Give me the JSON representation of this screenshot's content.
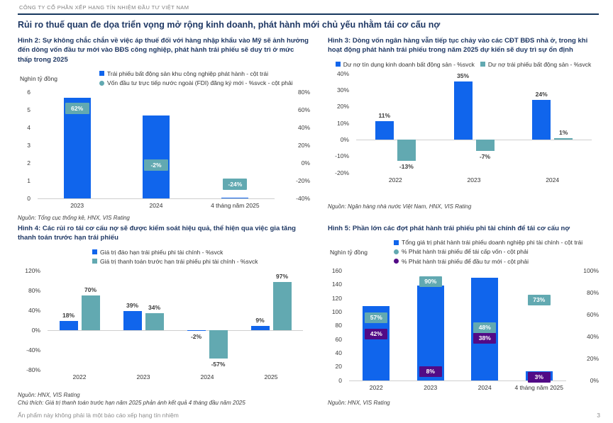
{
  "header": {
    "company": "CÔNG TY CỔ PHẦN XẾP HẠNG TÍN NHIỆM ĐẦU TƯ VIỆT NAM"
  },
  "page_title": "Rủi ro thuế quan đe dọa triển vọng mở rộng kinh doanh, phát hành mới chủ yếu nhằm tái cơ cấu nợ",
  "footer": {
    "disclaimer": "Ấn phẩm này không phải là một báo cáo xếp hạng tín nhiệm",
    "page_number": "3"
  },
  "colors": {
    "navy": "#1f3864",
    "blue": "#1065ec",
    "teal": "#62a9b1",
    "purple": "#520a86",
    "gray_text": "#7f7f7f"
  },
  "chart_data": [
    {
      "type": "bar",
      "variant": "bars_with_point_labels",
      "title": "Hình 2: Sự không chắc chắn về việc áp thuế đối với hàng nhập khẩu vào Mỹ sẽ ảnh hưởng đến dòng vốn đầu tư mới vào BĐS công nghiệp, phát hành trái phiếu sẽ duy trì ở mức thấp trong 2025",
      "unit": "Nghìn tỷ đồng",
      "legend": [
        {
          "label": "Trái phiếu bất động sản khu công nghiệp phát hành - cột trái",
          "marker": "square",
          "color": "blue"
        },
        {
          "label": "Vốn đầu tư trực tiếp nước ngoài (FDI) đăng ký mới  - %svck - cột phải",
          "marker": "circle",
          "color": "teal"
        }
      ],
      "categories": [
        "2023",
        "2024",
        "4 tháng năm 2025"
      ],
      "bars": {
        "name": "Trái phiếu bất động sản khu công nghiệp phát hành",
        "color": "blue",
        "values": [
          5.7,
          4.7,
          0.05
        ]
      },
      "left_axis": {
        "min": 0,
        "max": 6,
        "ticks": [
          {
            "v": 6,
            "t": "6"
          },
          {
            "v": 5,
            "t": "5"
          },
          {
            "v": 4,
            "t": "4"
          },
          {
            "v": 3,
            "t": "3"
          },
          {
            "v": 2,
            "t": "2"
          },
          {
            "v": 1,
            "t": "1"
          },
          {
            "v": 0,
            "t": "0"
          }
        ]
      },
      "right_axis": {
        "min": -40,
        "max": 80,
        "ticks": [
          {
            "v": 80,
            "t": "80%"
          },
          {
            "v": 60,
            "t": "60%"
          },
          {
            "v": 40,
            "t": "40%"
          },
          {
            "v": 20,
            "t": "20%"
          },
          {
            "v": 0,
            "t": "0%"
          },
          {
            "v": -20,
            "t": "-20%"
          },
          {
            "v": -40,
            "t": "-40%"
          }
        ]
      },
      "points": [
        {
          "name": "Vốn đầu tư trực tiếp nước ngoài (FDI) đăng ký mới - %svck",
          "color": "teal",
          "values": [
            62,
            -2,
            -24
          ],
          "labels": [
            "62%",
            "-2%",
            "-24%"
          ]
        }
      ],
      "source": "Nguồn: Tổng cục thống kê, HNX, VIS Rating"
    },
    {
      "type": "bar",
      "variant": "grouped",
      "title": "Hình 3:  Dòng vốn ngân hàng vẫn tiếp tục chảy vào các CĐT BĐS nhà ở, trong khi hoạt động phát hành trái phiếu trong năm 2025 dự kiến sẽ duy trì sự ổn định",
      "legend": [
        {
          "label": "Dư nợ tín dụng kinh doanh bất động sản - %svck",
          "marker": "square",
          "color": "blue"
        },
        {
          "label": "Dư nợ trái phiếu bất động sản - %svck",
          "marker": "square",
          "color": "teal"
        }
      ],
      "categories": [
        "2022",
        "2023",
        "2024"
      ],
      "series": [
        {
          "name": "Dư nợ tín dụng kinh doanh bất động sản - %svck",
          "color": "blue",
          "values": [
            11,
            35,
            24
          ],
          "labels": [
            "11%",
            "35%",
            "24%"
          ]
        },
        {
          "name": "Dư nợ trái phiếu bất động sản - %svck",
          "color": "teal",
          "values": [
            -13,
            -7,
            1
          ],
          "labels": [
            "-13%",
            "-7%",
            "1%"
          ]
        }
      ],
      "axis": {
        "min": -20,
        "max": 40,
        "ticks": [
          {
            "v": 40,
            "t": "40%"
          },
          {
            "v": 30,
            "t": "30%"
          },
          {
            "v": 20,
            "t": "20%"
          },
          {
            "v": 10,
            "t": "10%"
          },
          {
            "v": 0,
            "t": "0%"
          },
          {
            "v": -10,
            "t": "-10%"
          },
          {
            "v": -20,
            "t": "-20%"
          }
        ]
      },
      "source": "Nguồn: Ngân hàng nhà nước Việt Nam, HNX, VIS Rating"
    },
    {
      "type": "bar",
      "variant": "grouped",
      "title": "Hình 4: Các rủi ro tái cơ cấu nợ sẽ được kiểm soát hiệu quả, thể hiện qua việc gia tăng thanh toán trước hạn trái phiếu",
      "legend": [
        {
          "label": "Giá trị đáo hạn trái phiếu phi tài chính - %svck",
          "marker": "square",
          "color": "blue"
        },
        {
          "label": "Giá trị thanh toán trước hạn trái phiếu phi tài chính - %svck",
          "marker": "square",
          "color": "teal"
        }
      ],
      "categories": [
        "2022",
        "2023",
        "2024",
        "2025"
      ],
      "series": [
        {
          "name": "Giá trị đáo hạn trái phiếu phi tài chính - %svck",
          "color": "blue",
          "values": [
            18,
            39,
            -2,
            9
          ],
          "labels": [
            "18%",
            "39%",
            "-2%",
            "9%"
          ]
        },
        {
          "name": "Giá trị thanh toán trước hạn trái phiếu phi tài chính - %svck",
          "color": "teal",
          "values": [
            70,
            34,
            -57,
            97
          ],
          "labels": [
            "70%",
            "34%",
            "-57%",
            "97%"
          ]
        }
      ],
      "axis": {
        "min": -80,
        "max": 120,
        "ticks": [
          {
            "v": 120,
            "t": "120%"
          },
          {
            "v": 80,
            "t": "80%"
          },
          {
            "v": 40,
            "t": "40%"
          },
          {
            "v": 0,
            "t": "0%"
          },
          {
            "v": -40,
            "t": "-40%"
          },
          {
            "v": -80,
            "t": "-80%"
          }
        ]
      },
      "source": "Nguồn: HNX, VIS Rating",
      "note": "Chú thích: Giá trị thanh toán trước hạn năm 2025 phản ánh kết quả 4 tháng đầu năm 2025"
    },
    {
      "type": "bar",
      "variant": "bars_with_point_labels",
      "title": "Hình 5: Phần lớn các đợt phát hành trái phiếu phi tài chính để tái cơ cấu nợ",
      "unit": "Nghìn tỷ đồng",
      "legend": [
        {
          "label": "Tổng giá trị phát hành trái phiếu doanh nghiệp phi tài chính - cột trái",
          "marker": "square",
          "color": "blue"
        },
        {
          "label": "% Phát hành trái phiếu để tái cấp vốn - cột phải",
          "marker": "circle",
          "color": "teal"
        },
        {
          "label": "% Phát hành trái phiếu để đầu tư mới - cột phải",
          "marker": "circle",
          "color": "purple"
        }
      ],
      "categories": [
        "2022",
        "2023",
        "2024",
        "4 tháng năm 2025"
      ],
      "bars": {
        "name": "Tổng giá trị phát hành trái phiếu doanh nghiệp phi tài chính",
        "color": "blue",
        "values": [
          108,
          138,
          150,
          13
        ]
      },
      "left_axis": {
        "min": 0,
        "max": 160,
        "ticks": [
          {
            "v": 160,
            "t": "160"
          },
          {
            "v": 140,
            "t": "140"
          },
          {
            "v": 120,
            "t": "120"
          },
          {
            "v": 100,
            "t": "100"
          },
          {
            "v": 80,
            "t": "80"
          },
          {
            "v": 60,
            "t": "60"
          },
          {
            "v": 40,
            "t": "40"
          },
          {
            "v": 20,
            "t": "20"
          },
          {
            "v": 0,
            "t": "0"
          }
        ]
      },
      "right_axis": {
        "min": 0,
        "max": 100,
        "ticks": [
          {
            "v": 100,
            "t": "100%"
          },
          {
            "v": 80,
            "t": "80%"
          },
          {
            "v": 60,
            "t": "60%"
          },
          {
            "v": 40,
            "t": "40%"
          },
          {
            "v": 20,
            "t": "20%"
          },
          {
            "v": 0,
            "t": "0%"
          }
        ]
      },
      "points": [
        {
          "name": "% Phát hành trái phiếu để tái cấp vốn - cột phải",
          "color": "teal",
          "values": [
            57,
            90,
            48,
            73
          ],
          "labels": [
            "57%",
            "90%",
            "48%",
            "73%"
          ]
        },
        {
          "name": "% Phát hành trái phiếu để đầu tư mới - cột phải",
          "color": "purple",
          "values": [
            42,
            8,
            38,
            3
          ],
          "labels": [
            "42%",
            "8%",
            "38%",
            "3%"
          ]
        }
      ],
      "source": "Nguồn: HNX, VIS Rating"
    }
  ]
}
